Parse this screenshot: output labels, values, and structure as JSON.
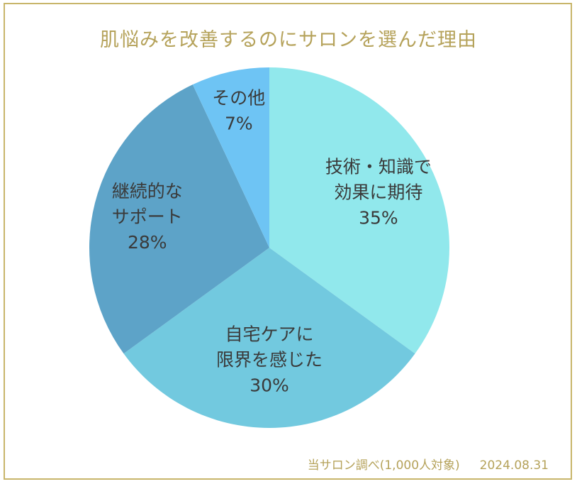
{
  "chart_data": {
    "type": "pie",
    "title": "肌悩みを改善するのにサロンを選んだ理由",
    "slices": [
      {
        "label_lines": [
          "技術・知識で",
          "効果に期待"
        ],
        "value": 35,
        "value_label": "35%",
        "color": "#91e8ec"
      },
      {
        "label_lines": [
          "自宅ケアに",
          "限界を感じた"
        ],
        "value": 30,
        "value_label": "30%",
        "color": "#72c9df"
      },
      {
        "label_lines": [
          "継続的な",
          "サポート"
        ],
        "value": 28,
        "value_label": "28%",
        "color": "#5da3c8"
      },
      {
        "label_lines": [
          "その他"
        ],
        "value": 7,
        "value_label": "7%",
        "color": "#6ec4f4"
      }
    ],
    "start_angle_deg": 0,
    "direction": "clockwise",
    "legend": "none"
  },
  "footer": {
    "source": "当サロン調べ(1,000人対象)",
    "date": "2024.08.31"
  }
}
